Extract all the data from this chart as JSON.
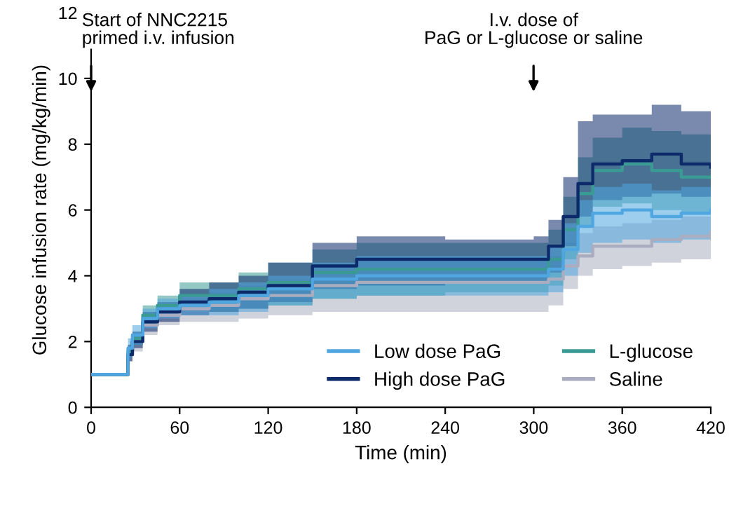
{
  "chart_data": {
    "type": "step",
    "xlabel": "Time (min)",
    "ylabel": "Glucose infusion rate (mg/kg/min)",
    "x": [
      0,
      23,
      25,
      28,
      35,
      45,
      60,
      80,
      100,
      120,
      150,
      180,
      240,
      300,
      310,
      320,
      330,
      340,
      360,
      380,
      400,
      420
    ],
    "series": [
      {
        "name": "Low dose PaG",
        "color": "#4fa6e0",
        "values": [
          1,
          1,
          1.8,
          2.2,
          2.7,
          3.0,
          3.1,
          3.2,
          3.4,
          3.6,
          3.9,
          4.0,
          4.0,
          4.0,
          4.2,
          4.8,
          5.5,
          5.9,
          6.0,
          5.8,
          5.9,
          6.0
        ],
        "lower": [
          1,
          1,
          1.5,
          1.9,
          2.4,
          2.7,
          2.8,
          2.8,
          2.9,
          3.1,
          3.3,
          3.4,
          3.4,
          3.4,
          3.5,
          4.0,
          4.7,
          5.0,
          5.1,
          5.0,
          5.1,
          5.2
        ],
        "upper": [
          1,
          1,
          2.1,
          2.5,
          3.0,
          3.3,
          3.4,
          3.6,
          3.8,
          4.0,
          4.4,
          4.6,
          4.6,
          4.6,
          4.9,
          5.6,
          6.3,
          6.7,
          6.8,
          6.6,
          6.7,
          6.8
        ]
      },
      {
        "name": "High dose PaG",
        "color": "#0d2a6b",
        "values": [
          1,
          1,
          1.6,
          2.0,
          2.6,
          2.9,
          3.2,
          3.3,
          3.5,
          3.7,
          4.3,
          4.5,
          4.5,
          4.5,
          4.9,
          5.8,
          6.8,
          7.4,
          7.5,
          7.7,
          7.4,
          7.3
        ],
        "lower": [
          1,
          1,
          1.4,
          1.8,
          2.3,
          2.6,
          2.8,
          2.9,
          3.0,
          3.2,
          3.6,
          3.7,
          3.8,
          3.8,
          4.1,
          4.9,
          5.8,
          6.3,
          6.4,
          6.5,
          6.4,
          6.3
        ],
        "upper": [
          1,
          1,
          1.9,
          2.3,
          2.9,
          3.2,
          3.6,
          3.8,
          4.0,
          4.4,
          5.0,
          5.2,
          5.1,
          5.2,
          5.7,
          7.0,
          8.7,
          8.9,
          8.9,
          9.2,
          9.0,
          8.7
        ]
      },
      {
        "name": "L-glucose",
        "color": "#3a9a94",
        "values": [
          1,
          1,
          1.7,
          2.1,
          2.8,
          3.1,
          3.4,
          3.4,
          3.6,
          3.8,
          4.1,
          4.2,
          4.2,
          4.2,
          4.5,
          5.4,
          6.5,
          7.2,
          7.4,
          7.2,
          7.0,
          7.0
        ],
        "lower": [
          1,
          1,
          1.5,
          1.9,
          2.5,
          2.8,
          3.0,
          2.9,
          3.0,
          3.1,
          3.3,
          3.4,
          3.5,
          3.5,
          3.7,
          4.5,
          5.5,
          6.1,
          6.2,
          6.0,
          5.9,
          5.9
        ],
        "upper": [
          1,
          1,
          1.9,
          2.3,
          3.1,
          3.4,
          3.8,
          3.8,
          4.1,
          4.4,
          4.8,
          5.0,
          5.0,
          5.0,
          5.4,
          6.4,
          7.6,
          8.2,
          8.5,
          8.4,
          8.3,
          8.2
        ]
      },
      {
        "name": "Saline",
        "color": "#a9adbf",
        "values": [
          1,
          1,
          1.6,
          2.0,
          2.5,
          2.8,
          3.0,
          3.1,
          3.3,
          3.4,
          3.7,
          3.8,
          3.8,
          3.8,
          3.9,
          4.3,
          4.6,
          4.9,
          4.9,
          5.1,
          5.2,
          5.3
        ],
        "lower": [
          1,
          1,
          1.4,
          1.7,
          2.2,
          2.5,
          2.6,
          2.6,
          2.7,
          2.8,
          2.9,
          2.9,
          2.9,
          2.9,
          3.1,
          3.6,
          4.0,
          4.2,
          4.3,
          4.4,
          4.5,
          4.5
        ],
        "upper": [
          1,
          1,
          1.8,
          2.2,
          2.8,
          3.1,
          3.3,
          3.5,
          3.7,
          3.9,
          4.3,
          4.4,
          4.4,
          4.4,
          4.6,
          5.0,
          5.3,
          5.5,
          5.6,
          5.7,
          5.8,
          5.9
        ]
      }
    ],
    "annotations": [
      "Start of NNC2215\nprimed i.v. infusion",
      "I.v. dose of\nPaG or L-glucose or saline"
    ],
    "xlim": [
      0,
      420
    ],
    "xticks": [
      0,
      60,
      120,
      180,
      240,
      300,
      360,
      420
    ],
    "ylim": [
      0,
      12
    ],
    "yticks": [
      0,
      2,
      4,
      6,
      8,
      10,
      12
    ],
    "legend": "bottom right",
    "grid": false,
    "line_style": "solid",
    "marker": "none"
  }
}
